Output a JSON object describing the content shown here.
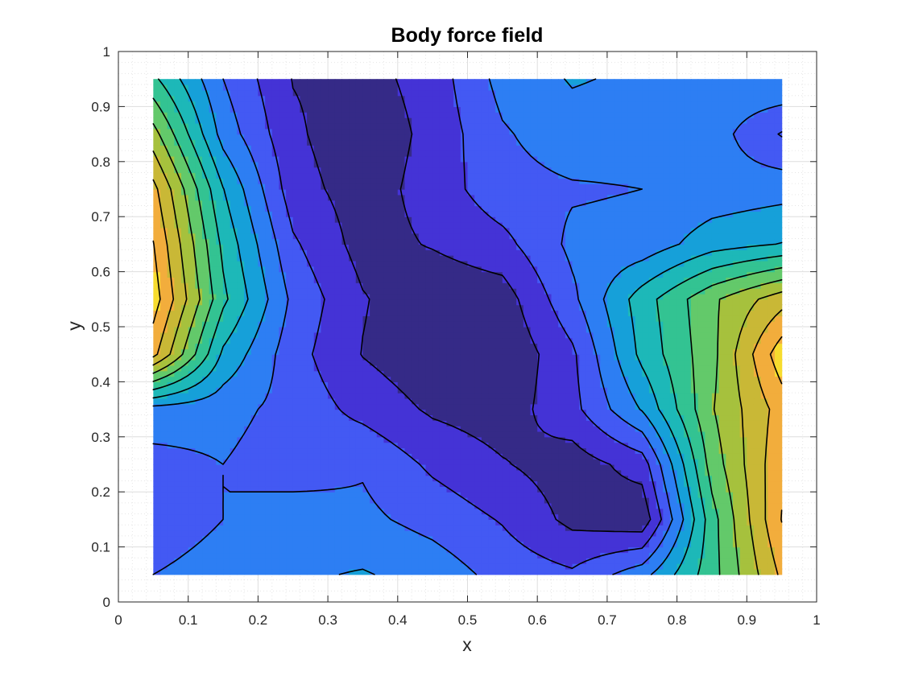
{
  "chart_data": {
    "type": "contour",
    "title": "Body force field",
    "xlabel": "x",
    "ylabel": "y",
    "xlim": [
      0,
      1
    ],
    "ylim": [
      0,
      1
    ],
    "grid": true,
    "minor_grid": true,
    "xticks": [
      "0",
      "0.1",
      "0.2",
      "0.3",
      "0.4",
      "0.5",
      "0.6",
      "0.7",
      "0.8",
      "0.9",
      "1"
    ],
    "yticks": [
      "0",
      "0.1",
      "0.2",
      "0.3",
      "0.4",
      "0.5",
      "0.6",
      "0.7",
      "0.8",
      "0.9",
      "1"
    ],
    "colormap": "parula",
    "filled": true,
    "contour_levels": 12,
    "colors": [
      "#352a87",
      "#4433d6",
      "#4359f3",
      "#2d7ef3",
      "#16a0d9",
      "#1db8b8",
      "#33c392",
      "#63c96a",
      "#a6c13d",
      "#c9b836",
      "#f2ad3c",
      "#f7dc2e",
      "#f9fb0e"
    ],
    "x": [
      0.05,
      0.15,
      0.25,
      0.35,
      0.45,
      0.55,
      0.65,
      0.75,
      0.85,
      0.95
    ],
    "y": [
      0.05,
      0.15,
      0.25,
      0.35,
      0.45,
      0.55,
      0.65,
      0.75,
      0.85,
      0.95
    ],
    "z": [
      [
        0.25,
        0.3,
        0.32,
        0.34,
        0.3,
        0.22,
        0.18,
        0.3,
        0.55,
        0.85
      ],
      [
        0.18,
        0.25,
        0.3,
        0.27,
        0.22,
        0.16,
        0.06,
        0.02,
        0.55,
        0.92
      ],
      [
        0.22,
        0.25,
        0.2,
        0.24,
        0.15,
        0.09,
        0.04,
        0.12,
        0.62,
        0.9
      ],
      [
        0.3,
        0.28,
        0.22,
        0.14,
        0.07,
        0.04,
        0.14,
        0.34,
        0.66,
        0.87
      ],
      [
        0.86,
        0.4,
        0.2,
        0.08,
        0.02,
        0.01,
        0.15,
        0.44,
        0.64,
        0.97
      ],
      [
        0.96,
        0.52,
        0.23,
        0.09,
        0.02,
        0.04,
        0.23,
        0.46,
        0.65,
        0.8
      ],
      [
        0.92,
        0.48,
        0.18,
        0.05,
        0.09,
        0.14,
        0.27,
        0.28,
        0.38,
        0.42
      ],
      [
        0.86,
        0.42,
        0.12,
        0.04,
        0.12,
        0.22,
        0.24,
        0.25,
        0.28,
        0.3
      ],
      [
        0.7,
        0.3,
        0.1,
        0.02,
        0.11,
        0.24,
        0.3,
        0.29,
        0.29,
        0.16
      ],
      [
        0.52,
        0.25,
        0.08,
        0.05,
        0.12,
        0.28,
        0.34,
        0.32,
        0.3,
        0.33
      ]
    ]
  }
}
